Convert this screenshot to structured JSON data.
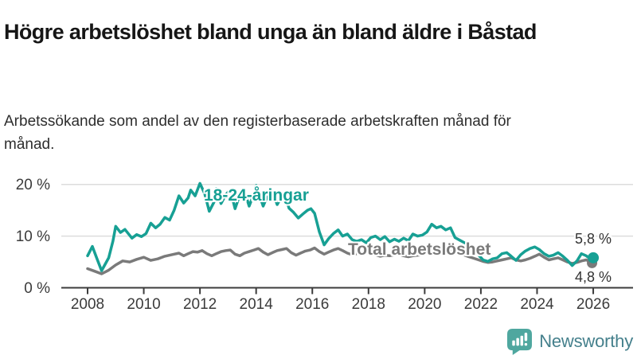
{
  "header": {
    "title": "Högre arbetslöshet bland unga än bland äldre i Båstad",
    "subtitle": "Arbetssökande som andel av den registerbaserade arbetskraften månad för månad."
  },
  "footer": {
    "brand": "Newsworthy",
    "brand_icon": "newsworthy-chart-bubble-icon",
    "brand_icon_color": "#4FA79F",
    "brand_text_color": "#45808C"
  },
  "colors": {
    "young_series": "#17A094",
    "total_series": "#7a7a7a",
    "gridline": "#dcdcdc",
    "axis": "#3c3c3c",
    "axis_text": "#3b3b3b"
  },
  "chart_data": {
    "type": "line",
    "title": "Högre arbetslöshet bland unga än bland äldre i Båstad",
    "subtitle": "Arbetssökande som andel av den registerbaserade arbetskraften månad för månad.",
    "xlabel": "",
    "ylabel": "",
    "x_unit": "decimal year (monthly observations)",
    "y_unit": "percent",
    "xlim": [
      2007.9,
      2026.6
    ],
    "ylim": [
      0,
      21
    ],
    "x_ticks": [
      2008,
      2010,
      2012,
      2014,
      2016,
      2018,
      2020,
      2022,
      2024,
      2026
    ],
    "y_ticks": [
      {
        "value": 20,
        "label": "20 %"
      },
      {
        "value": 10,
        "label": "10 %"
      },
      {
        "value": 0,
        "label": "0 %"
      }
    ],
    "gridlines_y": [
      10,
      20
    ],
    "grid": true,
    "legend_position": "inline labels next to lines",
    "series": [
      {
        "name": "18-24-åringar",
        "color": "#17A094",
        "end_value": 5.8,
        "end_value_label": "5,8 %",
        "x": [
          2008.0,
          2008.17,
          2008.33,
          2008.5,
          2008.75,
          2008.9,
          2009.0,
          2009.17,
          2009.33,
          2009.58,
          2009.75,
          2009.92,
          2010.08,
          2010.25,
          2010.42,
          2010.58,
          2010.75,
          2010.92,
          2011.08,
          2011.25,
          2011.42,
          2011.58,
          2011.67,
          2011.83,
          2012.0,
          2012.17,
          2012.33,
          2012.5,
          2012.58,
          2012.75,
          2012.92,
          2013.08,
          2013.25,
          2013.42,
          2013.58,
          2013.75,
          2013.92,
          2014.0,
          2014.25,
          2014.42,
          2014.58,
          2014.75,
          2014.92,
          2015.0,
          2015.17,
          2015.33,
          2015.5,
          2015.67,
          2015.83,
          2015.95,
          2016.08,
          2016.25,
          2016.42,
          2016.58,
          2016.75,
          2016.92,
          2017.08,
          2017.25,
          2017.42,
          2017.58,
          2017.75,
          2017.92,
          2018.08,
          2018.25,
          2018.42,
          2018.58,
          2018.75,
          2018.92,
          2019.08,
          2019.25,
          2019.42,
          2019.58,
          2019.75,
          2019.92,
          2020.08,
          2020.25,
          2020.42,
          2020.58,
          2020.75,
          2020.92,
          2021.08,
          2021.25,
          2021.42,
          2021.58,
          2021.75,
          2021.92,
          2022.08,
          2022.25,
          2022.42,
          2022.58,
          2022.75,
          2022.92,
          2023.08,
          2023.25,
          2023.42,
          2023.58,
          2023.75,
          2023.92,
          2024.08,
          2024.25,
          2024.42,
          2024.58,
          2024.75,
          2024.92,
          2025.08,
          2025.25,
          2025.42,
          2025.58,
          2025.75,
          2025.92,
          2026.0
        ],
        "values": [
          6.2,
          8.0,
          5.7,
          3.3,
          5.8,
          9.0,
          11.9,
          10.7,
          11.3,
          9.6,
          10.3,
          9.9,
          10.5,
          12.5,
          11.6,
          12.3,
          13.6,
          13.1,
          15.0,
          17.8,
          16.4,
          17.4,
          18.9,
          17.8,
          20.2,
          18.2,
          14.8,
          16.6,
          19.2,
          16.3,
          18.0,
          19.0,
          15.3,
          18.0,
          18.8,
          15.8,
          18.2,
          19.8,
          15.8,
          18.0,
          18.7,
          16.1,
          17.8,
          18.3,
          15.4,
          14.6,
          13.5,
          14.3,
          15.0,
          15.3,
          14.4,
          10.8,
          8.3,
          9.5,
          10.5,
          11.2,
          10.0,
          10.4,
          9.3,
          9.0,
          9.3,
          8.7,
          9.7,
          10.0,
          9.3,
          9.9,
          8.9,
          9.4,
          9.0,
          9.6,
          9.1,
          10.4,
          10.0,
          10.2,
          10.8,
          12.3,
          11.6,
          11.9,
          11.2,
          11.6,
          9.7,
          9.2,
          8.7,
          8.4,
          7.4,
          6.3,
          5.4,
          5.1,
          5.6,
          5.8,
          6.6,
          6.8,
          6.1,
          5.3,
          6.4,
          7.1,
          7.6,
          7.9,
          7.4,
          6.6,
          6.1,
          6.3,
          6.8,
          6.1,
          5.3,
          4.3,
          5.2,
          6.6,
          6.2,
          5.5,
          5.8
        ]
      },
      {
        "name": "Total arbetslöshet",
        "color": "#7a7a7a",
        "end_value": 4.8,
        "end_value_label": "4,8 %",
        "x": [
          2008.0,
          2008.25,
          2008.5,
          2008.75,
          2009.0,
          2009.25,
          2009.5,
          2009.75,
          2010.0,
          2010.25,
          2010.5,
          2010.75,
          2011.08,
          2011.25,
          2011.42,
          2011.58,
          2011.75,
          2011.92,
          2012.08,
          2012.25,
          2012.42,
          2012.58,
          2012.75,
          2012.92,
          2013.08,
          2013.25,
          2013.42,
          2013.58,
          2013.75,
          2013.92,
          2014.08,
          2014.25,
          2014.42,
          2014.58,
          2014.75,
          2014.92,
          2015.08,
          2015.25,
          2015.42,
          2015.58,
          2015.75,
          2015.92,
          2016.08,
          2016.25,
          2016.42,
          2016.58,
          2016.75,
          2016.92,
          2017.08,
          2017.25,
          2017.42,
          2017.58,
          2017.75,
          2017.92,
          2018.08,
          2018.25,
          2018.42,
          2018.58,
          2018.75,
          2018.92,
          2019.08,
          2019.25,
          2019.42,
          2019.58,
          2019.75,
          2019.92,
          2020.08,
          2020.25,
          2020.42,
          2020.58,
          2020.75,
          2020.92,
          2021.08,
          2021.25,
          2021.42,
          2021.58,
          2021.75,
          2021.92,
          2022.08,
          2022.25,
          2022.42,
          2022.58,
          2022.75,
          2022.92,
          2023.08,
          2023.25,
          2023.42,
          2023.58,
          2023.75,
          2023.92,
          2024.08,
          2024.25,
          2024.42,
          2024.58,
          2024.75,
          2024.92,
          2025.08,
          2025.25,
          2025.42,
          2025.58,
          2025.75,
          2025.92,
          2026.0
        ],
        "values": [
          3.7,
          3.2,
          2.7,
          3.4,
          4.4,
          5.2,
          5.0,
          5.5,
          5.9,
          5.3,
          5.6,
          6.1,
          6.5,
          6.7,
          6.2,
          6.6,
          7.0,
          6.9,
          7.2,
          6.6,
          6.2,
          6.6,
          7.0,
          7.2,
          7.3,
          6.5,
          6.2,
          6.7,
          7.0,
          7.3,
          7.6,
          6.9,
          6.4,
          6.8,
          7.2,
          7.4,
          7.6,
          6.8,
          6.3,
          6.7,
          7.1,
          7.3,
          7.7,
          7.0,
          6.5,
          6.9,
          7.3,
          7.6,
          7.2,
          6.7,
          6.4,
          6.6,
          6.8,
          6.6,
          6.7,
          6.4,
          6.1,
          6.3,
          6.2,
          6.4,
          6.5,
          6.2,
          6.0,
          6.2,
          6.3,
          6.4,
          6.6,
          7.1,
          7.3,
          7.2,
          7.0,
          7.1,
          6.9,
          6.6,
          6.3,
          6.0,
          5.7,
          5.4,
          5.1,
          4.9,
          5.0,
          5.2,
          5.4,
          5.6,
          5.8,
          5.4,
          5.2,
          5.4,
          5.7,
          6.1,
          6.5,
          5.9,
          5.4,
          5.6,
          5.8,
          5.4,
          5.0,
          4.7,
          4.9,
          5.2,
          5.4,
          5.0,
          4.8
        ]
      }
    ]
  }
}
